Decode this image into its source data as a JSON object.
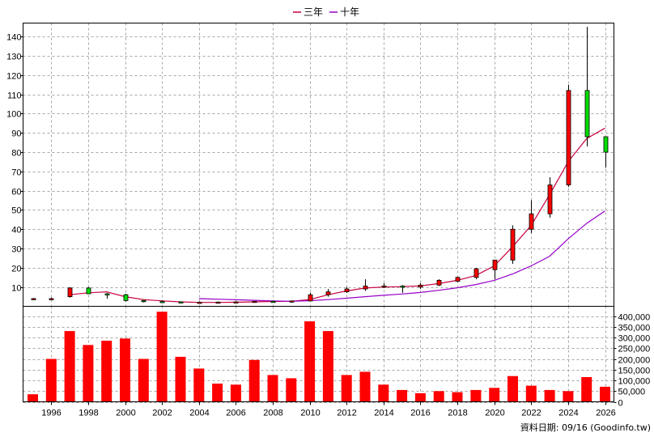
{
  "chart_data": [
    {
      "type": "candlestick",
      "x": [
        1995,
        1996,
        1997,
        1998,
        1999,
        2000,
        2001,
        2002,
        2003,
        2004,
        2005,
        2006,
        2007,
        2008,
        2009,
        2010,
        2011,
        2012,
        2013,
        2014,
        2015,
        2016,
        2017,
        2018,
        2019,
        2020,
        2021,
        2022,
        2023,
        2024,
        2025,
        2026
      ],
      "ohlc": [
        [
          4,
          4.3,
          3.6,
          4
        ],
        [
          4,
          4.5,
          3.5,
          4
        ],
        [
          5,
          10,
          4.5,
          9.5
        ],
        [
          9.5,
          10,
          6.5,
          6.5
        ],
        [
          6.5,
          7,
          4,
          6
        ],
        [
          6,
          6.5,
          2.5,
          3
        ],
        [
          3,
          3.3,
          2,
          2.5
        ],
        [
          2.5,
          3,
          2,
          2.4
        ],
        [
          2.3,
          2.5,
          1.8,
          2
        ],
        [
          2,
          2.4,
          1.7,
          2.1
        ],
        [
          2.1,
          2.5,
          1.8,
          2.2
        ],
        [
          2.2,
          2.6,
          1.8,
          2.3
        ],
        [
          2.3,
          2.8,
          2,
          2.6
        ],
        [
          2.6,
          2.9,
          2,
          2.4
        ],
        [
          2.2,
          3,
          1.9,
          2.8
        ],
        [
          2.8,
          7,
          2.6,
          6
        ],
        [
          6,
          9,
          5,
          7.5
        ],
        [
          7.5,
          10,
          7,
          9
        ],
        [
          9,
          14,
          8,
          10.5
        ],
        [
          10,
          12,
          9.5,
          10.5
        ],
        [
          10.5,
          11,
          7,
          10
        ],
        [
          10,
          12,
          9,
          11
        ],
        [
          11,
          14,
          10.5,
          13.5
        ],
        [
          13,
          15.5,
          12.5,
          15
        ],
        [
          15,
          20,
          14,
          19.5
        ],
        [
          19,
          24,
          14,
          24
        ],
        [
          24,
          42,
          22,
          40
        ],
        [
          40,
          55,
          38,
          48
        ],
        [
          48,
          67,
          46,
          63
        ],
        [
          63,
          115,
          62,
          112
        ],
        [
          112,
          145,
          83,
          88
        ],
        [
          88,
          88,
          72,
          80
        ]
      ],
      "series": [
        {
          "name": "三年",
          "color": "#c8003c",
          "x": [
            1997,
            1998,
            1999,
            2000,
            2001,
            2002,
            2003,
            2004,
            2005,
            2006,
            2007,
            2008,
            2009,
            2010,
            2011,
            2012,
            2013,
            2014,
            2015,
            2016,
            2017,
            2018,
            2019,
            2020,
            2021,
            2022,
            2023,
            2024,
            2025,
            2026
          ],
          "values": [
            6,
            7,
            7.5,
            5,
            3.5,
            2.8,
            2.3,
            2,
            2,
            2.1,
            2.3,
            2.5,
            2.6,
            3.5,
            6,
            8,
            9.5,
            10,
            10.2,
            10.6,
            11.8,
            13.5,
            16,
            21,
            31,
            42,
            58,
            75,
            87,
            92.5
          ]
        },
        {
          "name": "十年",
          "color": "#9600c8",
          "x": [
            2004,
            2005,
            2006,
            2007,
            2008,
            2009,
            2010,
            2011,
            2012,
            2013,
            2014,
            2015,
            2016,
            2017,
            2018,
            2019,
            2020,
            2021,
            2022,
            2023,
            2024,
            2025,
            2026
          ],
          "values": [
            4,
            3.7,
            3.4,
            3.1,
            2.8,
            2.6,
            2.9,
            3.5,
            4.2,
            5,
            5.7,
            6.4,
            7.2,
            8.3,
            9.6,
            11.3,
            13.5,
            16.8,
            21,
            26,
            35,
            43,
            49.5
          ]
        }
      ],
      "ylim": [
        0,
        147
      ],
      "yticks": [
        10,
        20,
        30,
        40,
        50,
        60,
        70,
        80,
        90,
        100,
        110,
        120,
        130,
        140
      ],
      "grid": true,
      "legend": "top-center"
    },
    {
      "type": "bar",
      "color": "#ff0000",
      "x": [
        1995,
        1996,
        1997,
        1998,
        1999,
        2000,
        2001,
        2002,
        2003,
        2004,
        2005,
        2006,
        2007,
        2008,
        2009,
        2010,
        2011,
        2012,
        2013,
        2014,
        2015,
        2016,
        2017,
        2018,
        2019,
        2020,
        2021,
        2022,
        2023,
        2024,
        2025,
        2026
      ],
      "values": [
        35000,
        200000,
        330000,
        265000,
        285000,
        295000,
        200000,
        420000,
        210000,
        155000,
        85000,
        80000,
        195000,
        125000,
        110000,
        375000,
        330000,
        125000,
        140000,
        80000,
        55000,
        40000,
        50000,
        45000,
        55000,
        65000,
        120000,
        75000,
        55000,
        50000,
        115000,
        70000
      ],
      "ylim": [
        0,
        400000
      ],
      "yticks": [
        "0",
        "50,000",
        "100,000",
        "150,000",
        "200,000",
        "250,000",
        "300,000",
        "350,000",
        "400,000"
      ],
      "xtick_labels": [
        "1996",
        "1998",
        "2000",
        "2002",
        "2004",
        "2006",
        "2008",
        "2010",
        "2012",
        "2014",
        "2016",
        "2018",
        "2020",
        "2022",
        "2024",
        "2026"
      ],
      "grid": true
    }
  ],
  "source_text": "資料日期: 09/16  (Goodinfo.tw)",
  "colors": {
    "up": "#ff0000",
    "down": "#00dd00",
    "candle_outline": "#000000",
    "grid": "#a8a8a8"
  }
}
